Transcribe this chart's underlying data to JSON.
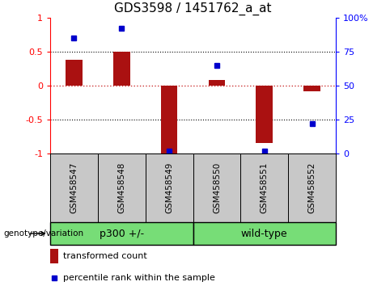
{
  "title": "GDS3598 / 1451762_a_at",
  "categories": [
    "GSM458547",
    "GSM458548",
    "GSM458549",
    "GSM458550",
    "GSM458551",
    "GSM458552"
  ],
  "bar_values": [
    0.38,
    0.5,
    -1.02,
    0.08,
    -0.85,
    -0.08
  ],
  "percentile_values": [
    85,
    92,
    2,
    65,
    2,
    22
  ],
  "bar_color": "#aa1111",
  "dot_color": "#0000cc",
  "ylim_left": [
    -1.0,
    1.0
  ],
  "ylim_right": [
    0,
    100
  ],
  "yticks_left": [
    -1,
    -0.5,
    0,
    0.5,
    1
  ],
  "ytick_labels_left": [
    "-1",
    "-0.5",
    "0",
    "0.5",
    "1"
  ],
  "yticks_right": [
    0,
    25,
    50,
    75,
    100
  ],
  "ytick_labels_right": [
    "0",
    "25",
    "50",
    "75",
    "100%"
  ],
  "groups": [
    {
      "label": "p300 +/-",
      "indices": [
        0,
        1,
        2
      ],
      "color": "#77dd77"
    },
    {
      "label": "wild-type",
      "indices": [
        3,
        4,
        5
      ],
      "color": "#77dd77"
    }
  ],
  "group_label": "genotype/variation",
  "legend_bar_label": "transformed count",
  "legend_dot_label": "percentile rank within the sample",
  "bar_width": 0.35,
  "title_fontsize": 11,
  "tick_fontsize": 8,
  "label_fontsize": 8
}
